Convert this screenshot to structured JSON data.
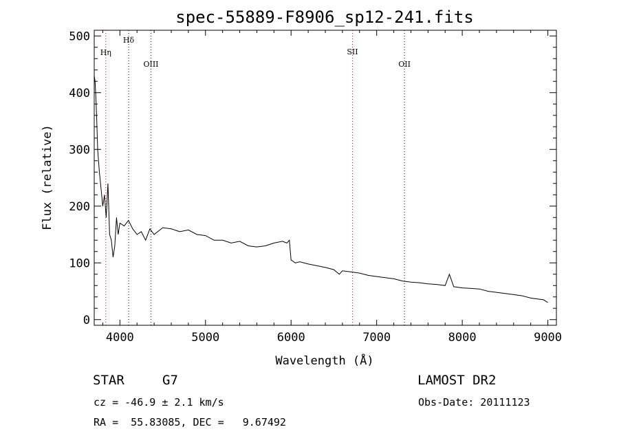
{
  "chart_data": {
    "type": "line",
    "title": "spec-55889-F8906_sp12-241.fits",
    "xlabel": "Wavelength (Å)",
    "ylabel": "Flux (relative)",
    "xlim": [
      3700,
      9100
    ],
    "ylim": [
      -10,
      510
    ],
    "xticks": [
      4000,
      5000,
      6000,
      7000,
      8000,
      9000
    ],
    "yticks": [
      0,
      100,
      200,
      300,
      400,
      500
    ],
    "grid": false,
    "spectral_lines": [
      {
        "label": "Hη",
        "x": 3835,
        "color": "#cc0000"
      },
      {
        "label": "Hδ",
        "x": 4102,
        "color": "#000000"
      },
      {
        "label": "OIII",
        "x": 4363,
        "color": "#000000"
      },
      {
        "label": "SII",
        "x": 6717,
        "color": "#cc0000"
      },
      {
        "label": "OII",
        "x": 7325,
        "color": "#000000"
      }
    ],
    "series": [
      {
        "x": [
          3700,
          3710,
          3720,
          3730,
          3740,
          3760,
          3780,
          3800,
          3820,
          3840,
          3860,
          3880,
          3900,
          3920,
          3940,
          3960,
          3980,
          4000,
          4050,
          4100,
          4150,
          4200,
          4250,
          4300,
          4350,
          4400,
          4500,
          4600,
          4700,
          4800,
          4900,
          5000,
          5100,
          5200,
          5300,
          5400,
          5500,
          5600,
          5700,
          5800,
          5900,
          5950,
          5980,
          6000,
          6050,
          6100,
          6200,
          6300,
          6400,
          6500,
          6563,
          6600,
          6700,
          6800,
          6900,
          7000,
          7100,
          7200,
          7300,
          7400,
          7500,
          7600,
          7700,
          7800,
          7850,
          7900,
          8000,
          8100,
          8200,
          8300,
          8400,
          8500,
          8600,
          8700,
          8800,
          8900,
          8950,
          9000
        ],
        "y": [
          430,
          420,
          390,
          350,
          300,
          260,
          230,
          200,
          220,
          180,
          240,
          150,
          140,
          110,
          130,
          180,
          150,
          170,
          165,
          175,
          160,
          150,
          155,
          140,
          160,
          150,
          162,
          160,
          155,
          158,
          150,
          148,
          140,
          140,
          135,
          138,
          130,
          128,
          130,
          135,
          138,
          135,
          140,
          105,
          100,
          102,
          98,
          95,
          92,
          88,
          80,
          86,
          84,
          82,
          78,
          76,
          74,
          72,
          68,
          66,
          65,
          63,
          62,
          60,
          80,
          58,
          56,
          55,
          54,
          50,
          48,
          46,
          44,
          42,
          38,
          36,
          35,
          30
        ]
      }
    ]
  },
  "info": {
    "object_class": "STAR",
    "subclass": "G7",
    "survey": "LAMOST DR2",
    "cz": "cz = -46.9 ± 2.1 km/s",
    "obs_date": "Obs-Date: 20111123",
    "coords": "RA =  55.83085, DEC =   9.67492"
  }
}
